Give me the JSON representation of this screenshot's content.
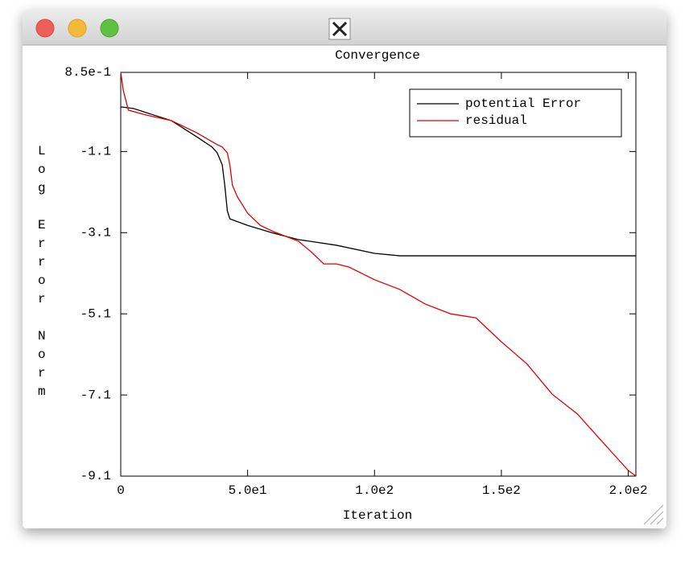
{
  "chart_data": {
    "type": "line",
    "title": "Convergence",
    "xlabel": "Iteration",
    "ylabel": "Log Error Norm",
    "xlim": [
      0,
      203
    ],
    "ylim": [
      -9.1,
      0.85
    ],
    "xticks": [
      0,
      {
        "value": 50,
        "label": "5.0e1"
      },
      {
        "value": 100,
        "label": "1.0e2"
      },
      {
        "value": 150,
        "label": "1.5e2"
      },
      {
        "value": 200,
        "label": "2.0e2"
      }
    ],
    "yticks": [
      {
        "value": 0.85,
        "label": "8.5e-1"
      },
      -1.1,
      -3.1,
      -5.1,
      -7.1,
      -9.1
    ],
    "legend": "upper right",
    "series": [
      {
        "name": "potential Error",
        "color": "#000000",
        "x": [
          0,
          5,
          20,
          30,
          36,
          38,
          40,
          41,
          42,
          43,
          50,
          60,
          70,
          85,
          100,
          110,
          203
        ],
        "values": [
          0.0,
          -0.04,
          -0.34,
          -0.74,
          -0.99,
          -1.13,
          -1.43,
          -1.93,
          -2.56,
          -2.76,
          -2.92,
          -3.11,
          -3.27,
          -3.41,
          -3.61,
          -3.67,
          -3.67
        ]
      },
      {
        "name": "residual",
        "color": "#e00000",
        "x": [
          0,
          1,
          3,
          10,
          20,
          30,
          38,
          40,
          42,
          43,
          44,
          46,
          50,
          55,
          60,
          70,
          75,
          80,
          85,
          90,
          100,
          110,
          120,
          130,
          140,
          150,
          160,
          170,
          180,
          190,
          200,
          203
        ],
        "values": [
          0.85,
          0.41,
          -0.08,
          -0.2,
          -0.34,
          -0.64,
          -0.93,
          -0.99,
          -1.13,
          -1.43,
          -1.93,
          -2.22,
          -2.62,
          -2.92,
          -3.07,
          -3.31,
          -3.57,
          -3.87,
          -3.87,
          -3.95,
          -4.26,
          -4.5,
          -4.86,
          -5.1,
          -5.2,
          -5.79,
          -6.33,
          -7.08,
          -7.57,
          -8.27,
          -8.96,
          -9.1
        ]
      }
    ]
  }
}
